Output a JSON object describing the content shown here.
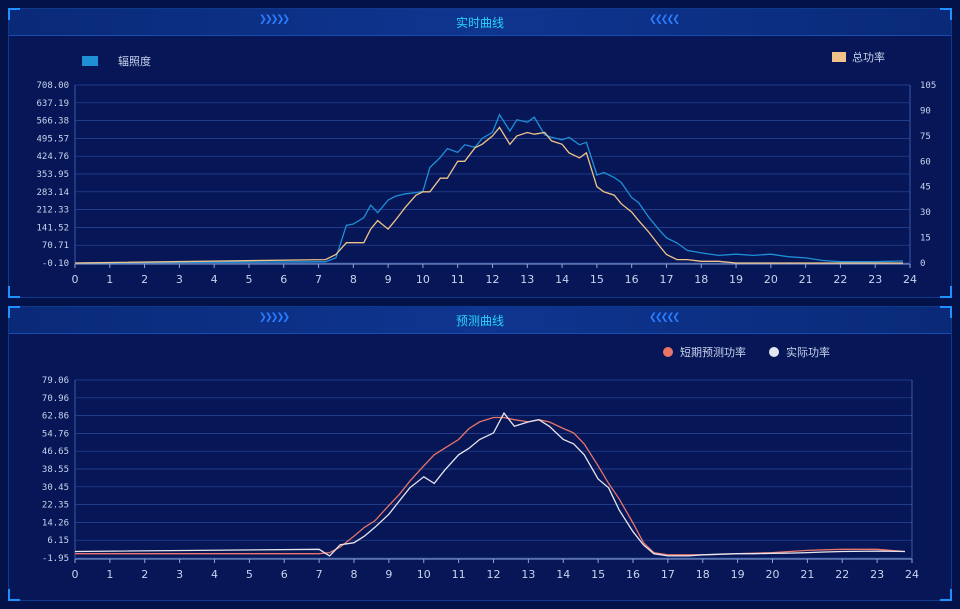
{
  "chart_data": [
    {
      "type": "line",
      "title": "实时曲线",
      "x": [
        0,
        7.2,
        7.5,
        7.8,
        8.0,
        8.3,
        8.5,
        8.7,
        9.0,
        9.2,
        9.5,
        9.8,
        10.0,
        10.2,
        10.5,
        10.7,
        11.0,
        11.2,
        11.5,
        11.7,
        12.0,
        12.2,
        12.5,
        12.7,
        13.0,
        13.2,
        13.5,
        13.7,
        14.0,
        14.2,
        14.5,
        14.7,
        15.0,
        15.2,
        15.5,
        15.7,
        16.0,
        16.2,
        16.5,
        16.8,
        17.0,
        17.3,
        17.6,
        18.0,
        18.5,
        19.0,
        19.5,
        20.0,
        20.5,
        21.0,
        21.5,
        22.0,
        23.0,
        23.8
      ],
      "series": [
        {
          "name": "辐照度",
          "axis": "left",
          "color": "#1f8fd6",
          "values": [
            0,
            5,
            20,
            150,
            155,
            180,
            230,
            200,
            250,
            265,
            275,
            280,
            285,
            380,
            420,
            455,
            440,
            470,
            460,
            495,
            520,
            590,
            525,
            570,
            560,
            580,
            510,
            500,
            490,
            500,
            470,
            480,
            350,
            360,
            340,
            320,
            260,
            240,
            180,
            130,
            100,
            80,
            50,
            40,
            30,
            35,
            30,
            35,
            25,
            20,
            10,
            5,
            5,
            8
          ]
        },
        {
          "name": "总功率",
          "axis": "right",
          "color": "#f0c38a",
          "values": [
            0,
            2,
            5,
            12,
            12,
            12,
            20,
            25,
            20,
            25,
            33,
            40,
            42,
            42,
            50,
            50,
            60,
            60,
            68,
            70,
            75,
            80,
            70,
            75,
            77,
            76,
            77,
            72,
            70,
            65,
            62,
            65,
            45,
            42,
            40,
            35,
            30,
            25,
            18,
            10,
            5,
            2,
            2,
            1,
            1,
            0,
            0,
            0,
            0,
            0,
            0,
            0,
            0,
            0
          ]
        }
      ],
      "y_left_ticks": [
        "708.00",
        "637.19",
        "566.38",
        "495.57",
        "424.76",
        "353.95",
        "283.14",
        "212.33",
        "141.52",
        "70.71",
        "-0.10"
      ],
      "y_right_ticks": [
        "105",
        "90",
        "75",
        "60",
        "45",
        "30",
        "15",
        "0"
      ],
      "x_ticks": [
        "0",
        "1",
        "2",
        "3",
        "4",
        "5",
        "6",
        "7",
        "8",
        "9",
        "10",
        "11",
        "12",
        "13",
        "14",
        "15",
        "16",
        "17",
        "18",
        "19",
        "20",
        "21",
        "22",
        "23",
        "24"
      ],
      "ylim_left": [
        -0.1,
        708.0
      ],
      "ylim_right": [
        0,
        105
      ],
      "xlim": [
        0,
        24
      ],
      "legend": [
        "辐照度",
        "总功率"
      ]
    },
    {
      "type": "line",
      "title": "预测曲线",
      "x": [
        0,
        7.0,
        7.3,
        7.6,
        8.0,
        8.3,
        8.6,
        9.0,
        9.3,
        9.6,
        10.0,
        10.3,
        10.6,
        11.0,
        11.3,
        11.6,
        12.0,
        12.3,
        12.6,
        13.0,
        13.3,
        13.6,
        14.0,
        14.3,
        14.6,
        15.0,
        15.3,
        15.6,
        16.0,
        16.3,
        16.6,
        17.0,
        17.3,
        17.6,
        18.0,
        18.5,
        19.0,
        19.5,
        20.0,
        20.5,
        21.0,
        21.5,
        22.0,
        23.0,
        23.8
      ],
      "series": [
        {
          "name": "短期预测功率",
          "color": "#e8746a",
          "values": [
            0,
            0,
            0.5,
            3,
            8,
            12,
            15,
            22,
            27,
            33,
            40,
            45,
            48,
            52,
            57,
            60,
            62,
            62,
            61,
            60,
            61,
            60,
            57,
            55,
            50,
            40,
            32,
            25,
            14,
            5,
            0.5,
            -0.5,
            -0.5,
            -0.5,
            -0.5,
            -0.3,
            0,
            0.3,
            0.5,
            1,
            1.5,
            1.8,
            2,
            2,
            1
          ]
        },
        {
          "name": "实际功率",
          "color": "#e6e6ee",
          "values": [
            1,
            2,
            -1,
            4,
            5,
            8,
            12,
            18,
            24,
            30,
            35,
            32,
            38,
            45,
            48,
            52,
            55,
            64,
            58,
            60,
            61,
            58,
            52,
            50,
            45,
            34,
            30,
            20,
            10,
            4,
            0,
            -1,
            -1,
            -1,
            -0.5,
            -0.2,
            0,
            0,
            0.2,
            0.3,
            0.5,
            0.8,
            1,
            1.2,
            1
          ]
        }
      ],
      "y_ticks": [
        "79.06",
        "70.96",
        "62.86",
        "54.76",
        "46.65",
        "38.55",
        "30.45",
        "22.35",
        "14.26",
        "6.15",
        "-1.95"
      ],
      "x_ticks": [
        "0",
        "1",
        "2",
        "3",
        "4",
        "5",
        "6",
        "7",
        "8",
        "9",
        "10",
        "11",
        "12",
        "13",
        "14",
        "15",
        "16",
        "17",
        "18",
        "19",
        "20",
        "21",
        "22",
        "23",
        "24"
      ],
      "ylim": [
        -1.95,
        79.06
      ],
      "xlim": [
        0,
        24
      ],
      "legend": [
        "短期预测功率",
        "实际功率"
      ]
    }
  ],
  "colors": {
    "accent": "#29d3ff",
    "grid": "#2a4a9a"
  }
}
